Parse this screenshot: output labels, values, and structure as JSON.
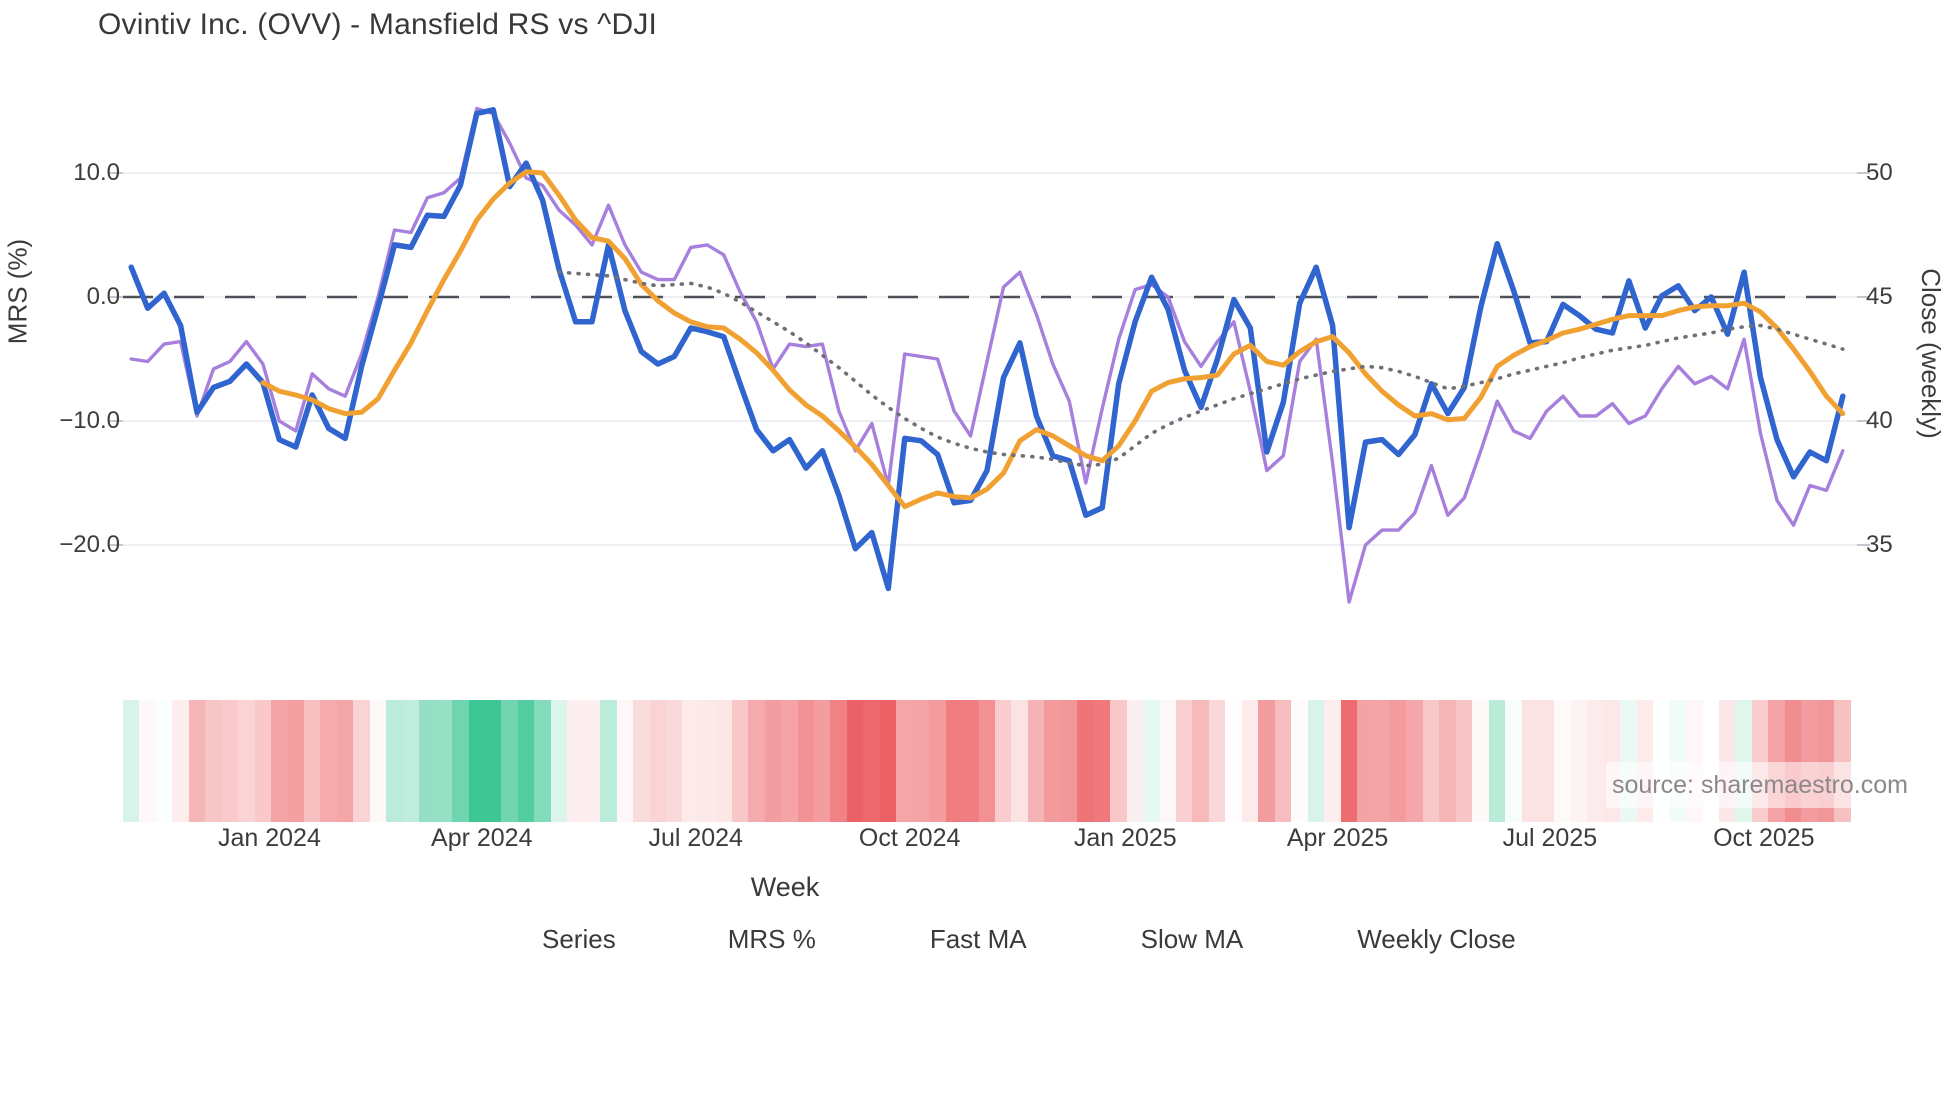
{
  "title": "Ovintiv Inc. (OVV) - Mansfield RS vs ^DJI",
  "source": "source: sharemaestro.com",
  "axes": {
    "left_title": "MRS (%)",
    "right_title": "Close (weekly)",
    "x_title": "Week",
    "left_ticks": [
      {
        "label": "10.0",
        "value": 10
      },
      {
        "label": "0.0",
        "value": 0
      },
      {
        "label": "−10.0",
        "value": -10
      },
      {
        "label": "−20.0",
        "value": -20
      }
    ],
    "right_ticks": [
      {
        "label": "50",
        "value": 50
      },
      {
        "label": "45",
        "value": 45
      },
      {
        "label": "40",
        "value": 40
      },
      {
        "label": "35",
        "value": 35
      }
    ],
    "x_ticks": [
      {
        "label": "Jan 2024",
        "week": 8.4
      },
      {
        "label": "Apr 2024",
        "week": 21.3
      },
      {
        "label": "Jul 2024",
        "week": 34.3
      },
      {
        "label": "Oct 2024",
        "week": 47.3
      },
      {
        "label": "Jan 2025",
        "week": 60.4
      },
      {
        "label": "Apr 2025",
        "week": 73.3
      },
      {
        "label": "Jul 2025",
        "week": 86.2
      },
      {
        "label": "Oct 2025",
        "week": 99.2
      }
    ]
  },
  "legend": {
    "title": "Series",
    "items": [
      {
        "label": "MRS %",
        "color": "#3064cf",
        "style": "solid"
      },
      {
        "label": "Fast MA",
        "color": "#f0a132",
        "style": "solid"
      },
      {
        "label": "Slow MA",
        "color": "#9aa2ad",
        "style": "dotted"
      },
      {
        "label": "Weekly Close",
        "color": "#a77fdc",
        "style": "solid"
      }
    ],
    "heatmap_swatch_color": "#c5e9d9"
  },
  "colors": {
    "grid": "#e8eaef",
    "zero_line": "#4e5058",
    "text": "#3c3c3c",
    "heat_positive": "#3ec795",
    "heat_negative": "#ec6165"
  },
  "chart_data": {
    "type": "line",
    "x_label": "Week",
    "x_range_weeks": 105,
    "left_ylabel": "MRS (%)",
    "left_ylim": [
      -26,
      16
    ],
    "right_ylabel": "Close (weekly)",
    "right_ylim": [
      33,
      53
    ],
    "grid": "horizontal",
    "zero_reference_line": 0,
    "legend_position": "bottom",
    "series": [
      {
        "name": "MRS %",
        "axis": "left",
        "color": "#3064cf",
        "width": 5.5,
        "values": [
          2.4,
          -0.9,
          0.3,
          -2.3,
          -9.3,
          -7.3,
          -6.8,
          -5.4,
          -6.9,
          -11.5,
          -12.1,
          -7.9,
          -10.6,
          -11.4,
          -5.6,
          -0.8,
          4.2,
          4.0,
          6.6,
          6.5,
          9.0,
          14.8,
          15.1,
          8.9,
          10.8,
          7.8,
          2.2,
          -2.0,
          -2.0,
          4.2,
          -1.1,
          -4.4,
          -5.4,
          -4.8,
          -2.5,
          -2.8,
          -3.2,
          -7.0,
          -10.7,
          -12.4,
          -11.5,
          -13.8,
          -12.4,
          -16.0,
          -20.3,
          -19.0,
          -23.5,
          -11.4,
          -11.6,
          -12.7,
          -16.6,
          -16.4,
          -14.0,
          -6.5,
          -3.7,
          -9.6,
          -12.8,
          -13.2,
          -17.6,
          -17.0,
          -7.0,
          -2.0,
          1.6,
          -1.0,
          -5.9,
          -8.9,
          -5.0,
          -0.2,
          -2.5,
          -12.5,
          -8.5,
          -0.5,
          2.4,
          -2.3,
          -18.6,
          -11.7,
          -11.5,
          -12.7,
          -11.1,
          -7.0,
          -9.4,
          -7.3,
          -0.8,
          4.3,
          0.5,
          -3.7,
          -3.6,
          -0.6,
          -1.5,
          -2.6,
          -2.9,
          1.3,
          -2.5,
          0.1,
          0.9,
          -1.1,
          0.0,
          -3.0,
          2.0,
          -6.5,
          -11.5,
          -14.5,
          -12.5,
          -13.2,
          -8.0
        ]
      },
      {
        "name": "Fast MA",
        "axis": "left",
        "color": "#f0a132",
        "width": 5,
        "values": [
          null,
          null,
          null,
          null,
          null,
          null,
          null,
          null,
          -6.9,
          -7.6,
          -7.9,
          -8.3,
          -9.0,
          -9.4,
          -9.3,
          -8.2,
          -5.9,
          -3.7,
          -1.1,
          1.4,
          3.7,
          6.2,
          7.9,
          9.2,
          10.1,
          10.0,
          8.2,
          6.2,
          4.8,
          4.5,
          3.1,
          1.0,
          -0.3,
          -1.3,
          -2.0,
          -2.4,
          -2.5,
          -3.4,
          -4.5,
          -5.9,
          -7.5,
          -8.7,
          -9.6,
          -10.8,
          -12.1,
          -13.5,
          -15.2,
          -16.9,
          -16.3,
          -15.8,
          -16.1,
          -16.2,
          -15.5,
          -14.2,
          -11.6,
          -10.7,
          -11.2,
          -12.0,
          -12.8,
          -13.2,
          -12.0,
          -10.0,
          -7.6,
          -6.9,
          -6.6,
          -6.5,
          -6.3,
          -4.6,
          -3.9,
          -5.2,
          -5.5,
          -4.4,
          -3.6,
          -3.2,
          -4.5,
          -6.2,
          -7.6,
          -8.7,
          -9.6,
          -9.4,
          -9.9,
          -9.8,
          -8.1,
          -5.6,
          -4.7,
          -4.0,
          -3.5,
          -2.9,
          -2.6,
          -2.2,
          -1.8,
          -1.5,
          -1.5,
          -1.5,
          -1.1,
          -0.8,
          -0.7,
          -0.7,
          -0.5,
          -1.2,
          -2.5,
          -4.2,
          -6.0,
          -8.0,
          -9.4
        ]
      },
      {
        "name": "Slow MA",
        "axis": "left",
        "color": "#6f7076",
        "width": 3.6,
        "dash": "1 8.5",
        "values": [
          null,
          null,
          null,
          null,
          null,
          null,
          null,
          null,
          null,
          null,
          null,
          null,
          null,
          null,
          null,
          null,
          null,
          null,
          null,
          null,
          null,
          null,
          null,
          null,
          null,
          null,
          2.0,
          1.9,
          1.8,
          1.7,
          1.4,
          1.1,
          0.9,
          1.0,
          1.1,
          0.8,
          0.3,
          -0.4,
          -1.2,
          -2.0,
          -2.8,
          -3.7,
          -4.7,
          -5.7,
          -6.8,
          -7.9,
          -8.9,
          -9.8,
          -10.6,
          -11.3,
          -11.8,
          -12.2,
          -12.5,
          -12.7,
          -12.8,
          -12.9,
          -13.1,
          -13.4,
          -13.6,
          -13.5,
          -13.0,
          -12.0,
          -11.0,
          -10.3,
          -9.7,
          -9.2,
          -8.7,
          -8.2,
          -7.8,
          -7.4,
          -7.0,
          -6.6,
          -6.3,
          -6.0,
          -5.8,
          -5.6,
          -5.7,
          -6.0,
          -6.4,
          -6.9,
          -7.4,
          -7.2,
          -6.9,
          -6.6,
          -6.2,
          -5.9,
          -5.6,
          -5.3,
          -4.9,
          -4.6,
          -4.3,
          -4.1,
          -3.9,
          -3.6,
          -3.3,
          -3.1,
          -2.9,
          -2.6,
          -2.4,
          -2.3,
          -2.6,
          -3.0,
          -3.4,
          -3.8,
          -4.2
        ]
      },
      {
        "name": "Weekly Close",
        "axis": "right",
        "color": "#a77fdc",
        "width": 3.4,
        "values": [
          42.5,
          42.4,
          43.1,
          43.2,
          40.2,
          42.1,
          42.4,
          43.2,
          42.3,
          40.0,
          39.6,
          41.9,
          41.3,
          41.0,
          42.7,
          45.0,
          47.7,
          47.6,
          49.0,
          49.2,
          49.8,
          52.6,
          52.4,
          51.2,
          49.8,
          49.5,
          48.5,
          47.9,
          47.1,
          48.7,
          47.1,
          46.0,
          45.7,
          45.7,
          47.0,
          47.1,
          46.7,
          45.2,
          44.0,
          42.1,
          43.1,
          43.0,
          43.1,
          40.4,
          38.8,
          39.9,
          37.4,
          42.7,
          42.6,
          42.5,
          40.4,
          39.4,
          42.4,
          45.4,
          46.0,
          44.3,
          42.3,
          40.8,
          37.5,
          40.5,
          43.3,
          45.3,
          45.5,
          45.0,
          43.2,
          42.2,
          43.2,
          44.0,
          41.2,
          38.0,
          38.6,
          42.4,
          43.3,
          38.3,
          32.7,
          35.0,
          35.6,
          35.6,
          36.3,
          38.2,
          36.2,
          36.9,
          38.8,
          40.8,
          39.6,
          39.3,
          40.4,
          41.0,
          40.2,
          40.2,
          40.7,
          39.9,
          40.2,
          41.3,
          42.2,
          41.5,
          41.8,
          41.3,
          43.3,
          39.5,
          36.8,
          35.8,
          37.4,
          37.2,
          38.8
        ]
      }
    ],
    "heatmap": {
      "description": "weekly color strip derived from MRS % value: green shades positive, red shades negative",
      "positive_color": "#3ec795",
      "negative_color": "#ec6165",
      "positive_full_scale": 12,
      "negative_full_scale": 20
    }
  }
}
